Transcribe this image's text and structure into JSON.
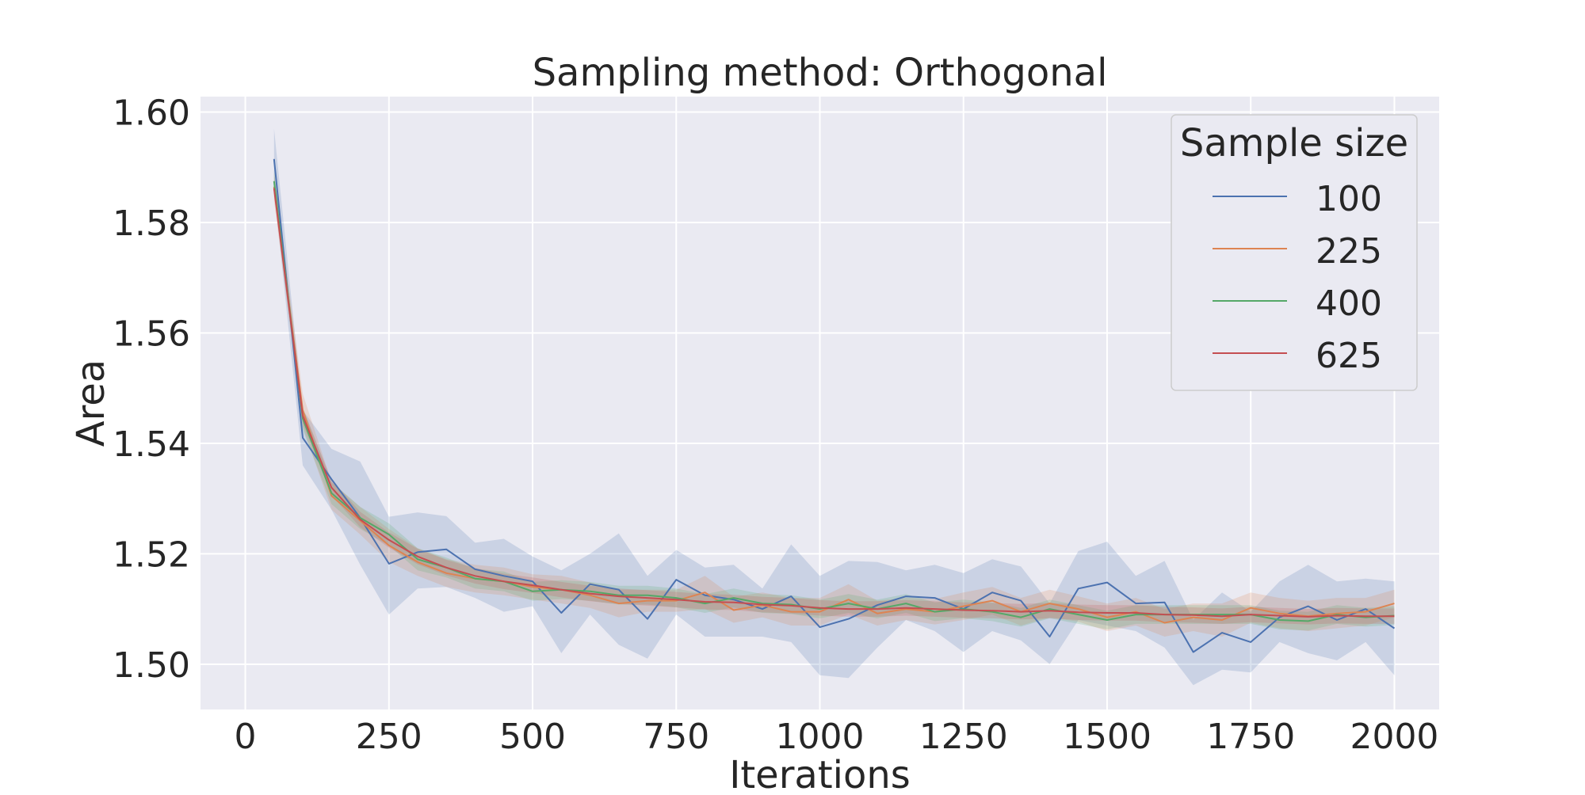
{
  "chart_data": {
    "type": "line",
    "title": "Sampling method: Orthogonal",
    "xlabel": "Iterations",
    "ylabel": "Area",
    "xlim": [
      -78,
      2078
    ],
    "ylim": [
      1.4918,
      1.6028
    ],
    "xticks": [
      0,
      250,
      500,
      750,
      1000,
      1250,
      1500,
      1750,
      2000
    ],
    "xtick_labels": [
      "0",
      "250",
      "500",
      "750",
      "1000",
      "1250",
      "1500",
      "1750",
      "2000"
    ],
    "yticks": [
      1.5,
      1.52,
      1.54,
      1.56,
      1.58,
      1.6
    ],
    "ytick_labels": [
      "1.50",
      "1.52",
      "1.54",
      "1.56",
      "1.58",
      "1.60"
    ],
    "grid": true,
    "legend": {
      "title": "Sample size",
      "position": "top-right",
      "entries": [
        "100",
        "225",
        "400",
        "625"
      ]
    },
    "x": [
      50,
      100,
      150,
      200,
      250,
      300,
      350,
      400,
      450,
      500,
      550,
      600,
      650,
      700,
      750,
      800,
      850,
      900,
      950,
      1000,
      1050,
      1100,
      1150,
      1200,
      1250,
      1300,
      1350,
      1400,
      1450,
      1500,
      1550,
      1600,
      1650,
      1700,
      1750,
      1800,
      1850,
      1900,
      1950,
      2000
    ],
    "series": [
      {
        "name": "100",
        "color": "#4c72b0",
        "values": [
          1.5915,
          1.541,
          1.5335,
          1.5265,
          1.5182,
          1.5203,
          1.5208,
          1.5172,
          1.516,
          1.515,
          1.5093,
          1.5145,
          1.5135,
          1.5082,
          1.5153,
          1.5125,
          1.5117,
          1.51,
          1.5123,
          1.5067,
          1.5082,
          1.5107,
          1.5123,
          1.512,
          1.51,
          1.513,
          1.5115,
          1.505,
          1.5137,
          1.5148,
          1.511,
          1.5112,
          1.5022,
          1.5057,
          1.504,
          1.5085,
          1.5105,
          1.508,
          1.51,
          1.5065
        ],
        "lower": [
          1.586,
          1.536,
          1.528,
          1.518,
          1.509,
          1.5137,
          1.514,
          1.512,
          1.5095,
          1.5105,
          1.502,
          1.509,
          1.5035,
          1.501,
          1.509,
          1.505,
          1.505,
          1.505,
          1.504,
          1.498,
          1.4975,
          1.503,
          1.508,
          1.506,
          1.5022,
          1.506,
          1.5043,
          1.5,
          1.508,
          1.507,
          1.506,
          1.503,
          1.4962,
          1.499,
          1.4985,
          1.504,
          1.502,
          1.5007,
          1.504,
          1.498
        ],
        "upper": [
          1.597,
          1.546,
          1.539,
          1.5367,
          1.5267,
          1.5275,
          1.5268,
          1.522,
          1.5227,
          1.5195,
          1.517,
          1.52,
          1.5237,
          1.516,
          1.5207,
          1.5175,
          1.518,
          1.5137,
          1.5217,
          1.516,
          1.5187,
          1.5185,
          1.517,
          1.518,
          1.5165,
          1.519,
          1.5177,
          1.511,
          1.5205,
          1.5222,
          1.516,
          1.5187,
          1.508,
          1.513,
          1.5095,
          1.515,
          1.518,
          1.515,
          1.5155,
          1.515
        ]
      },
      {
        "name": "225",
        "color": "#dd8452",
        "values": [
          1.5865,
          1.546,
          1.5305,
          1.526,
          1.5215,
          1.5185,
          1.5165,
          1.5155,
          1.515,
          1.514,
          1.5135,
          1.5125,
          1.511,
          1.5115,
          1.5115,
          1.513,
          1.5098,
          1.5107,
          1.5095,
          1.5095,
          1.5117,
          1.5092,
          1.51,
          1.5095,
          1.5105,
          1.5115,
          1.5095,
          1.511,
          1.51,
          1.5085,
          1.5095,
          1.5075,
          1.5085,
          1.508,
          1.5102,
          1.5092,
          1.5087,
          1.5092,
          1.5095,
          1.511
        ],
        "lower": [
          1.584,
          1.543,
          1.528,
          1.5235,
          1.5185,
          1.516,
          1.514,
          1.513,
          1.5125,
          1.5117,
          1.511,
          1.5102,
          1.5085,
          1.5095,
          1.5095,
          1.51,
          1.5075,
          1.5085,
          1.507,
          1.507,
          1.509,
          1.507,
          1.508,
          1.5072,
          1.508,
          1.509,
          1.507,
          1.5085,
          1.5077,
          1.506,
          1.507,
          1.505,
          1.506,
          1.505,
          1.5075,
          1.5065,
          1.506,
          1.5065,
          1.507,
          1.5085
        ],
        "upper": [
          1.589,
          1.549,
          1.533,
          1.5285,
          1.5245,
          1.521,
          1.519,
          1.518,
          1.5175,
          1.5163,
          1.516,
          1.5148,
          1.5135,
          1.5135,
          1.5135,
          1.516,
          1.5122,
          1.513,
          1.512,
          1.512,
          1.5145,
          1.5115,
          1.512,
          1.5118,
          1.513,
          1.514,
          1.512,
          1.5135,
          1.5123,
          1.511,
          1.512,
          1.51,
          1.511,
          1.511,
          1.513,
          1.512,
          1.5115,
          1.512,
          1.512,
          1.5135
        ]
      },
      {
        "name": "400",
        "color": "#55a868",
        "values": [
          1.5875,
          1.5445,
          1.531,
          1.5265,
          1.5235,
          1.519,
          1.5175,
          1.5155,
          1.515,
          1.5132,
          1.5135,
          1.5132,
          1.5125,
          1.5125,
          1.512,
          1.511,
          1.512,
          1.511,
          1.5108,
          1.51,
          1.511,
          1.51,
          1.511,
          1.5095,
          1.51,
          1.5095,
          1.5085,
          1.51,
          1.509,
          1.508,
          1.509,
          1.509,
          1.509,
          1.509,
          1.509,
          1.508,
          1.5078,
          1.509,
          1.5085,
          1.5088
        ],
        "lower": [
          1.5855,
          1.5425,
          1.529,
          1.5245,
          1.5215,
          1.517,
          1.5157,
          1.5137,
          1.5132,
          1.5115,
          1.5118,
          1.5115,
          1.5108,
          1.5108,
          1.5103,
          1.5093,
          1.5103,
          1.5093,
          1.5091,
          1.5083,
          1.5093,
          1.5083,
          1.5093,
          1.5078,
          1.5083,
          1.5078,
          1.5068,
          1.5083,
          1.5073,
          1.5063,
          1.5073,
          1.5073,
          1.5073,
          1.5073,
          1.5073,
          1.5063,
          1.5061,
          1.5073,
          1.5068,
          1.5071
        ],
        "upper": [
          1.5895,
          1.5465,
          1.533,
          1.5285,
          1.5255,
          1.521,
          1.5193,
          1.5173,
          1.5168,
          1.5149,
          1.5152,
          1.5149,
          1.5142,
          1.5142,
          1.5137,
          1.5127,
          1.5137,
          1.5127,
          1.5125,
          1.5117,
          1.5127,
          1.5117,
          1.5127,
          1.5112,
          1.5117,
          1.5112,
          1.5102,
          1.5117,
          1.5107,
          1.5097,
          1.5107,
          1.5107,
          1.5107,
          1.5107,
          1.5107,
          1.5097,
          1.5095,
          1.5107,
          1.5102,
          1.5105
        ]
      },
      {
        "name": "625",
        "color": "#c44e52",
        "values": [
          1.5862,
          1.545,
          1.532,
          1.5262,
          1.5225,
          1.5195,
          1.5175,
          1.516,
          1.515,
          1.5143,
          1.5135,
          1.5128,
          1.5123,
          1.512,
          1.5117,
          1.5113,
          1.5112,
          1.5108,
          1.5106,
          1.5102,
          1.51,
          1.51,
          1.5102,
          1.51,
          1.5098,
          1.5097,
          1.5095,
          1.5097,
          1.5094,
          1.5093,
          1.5093,
          1.509,
          1.5089,
          1.5087,
          1.509,
          1.5088,
          1.5086,
          1.5088,
          1.5087,
          1.5087
        ],
        "lower": [
          1.5848,
          1.5436,
          1.5306,
          1.5248,
          1.5211,
          1.5181,
          1.5161,
          1.5146,
          1.5136,
          1.5129,
          1.5121,
          1.5114,
          1.5109,
          1.5106,
          1.5103,
          1.5099,
          1.5098,
          1.5094,
          1.5092,
          1.5088,
          1.5086,
          1.5086,
          1.5088,
          1.5086,
          1.5084,
          1.5083,
          1.5081,
          1.5083,
          1.508,
          1.5079,
          1.5079,
          1.5076,
          1.5075,
          1.5073,
          1.5076,
          1.5074,
          1.5072,
          1.5074,
          1.5073,
          1.5073
        ],
        "upper": [
          1.5876,
          1.5464,
          1.5334,
          1.5276,
          1.5239,
          1.5209,
          1.5189,
          1.5174,
          1.5164,
          1.5157,
          1.5149,
          1.5142,
          1.5137,
          1.5134,
          1.5131,
          1.5127,
          1.5126,
          1.5122,
          1.512,
          1.5116,
          1.5114,
          1.5114,
          1.5116,
          1.5114,
          1.5112,
          1.5111,
          1.5109,
          1.5111,
          1.5108,
          1.5107,
          1.5107,
          1.5104,
          1.5103,
          1.5101,
          1.5104,
          1.5102,
          1.51,
          1.5102,
          1.5101,
          1.5101
        ]
      }
    ]
  }
}
